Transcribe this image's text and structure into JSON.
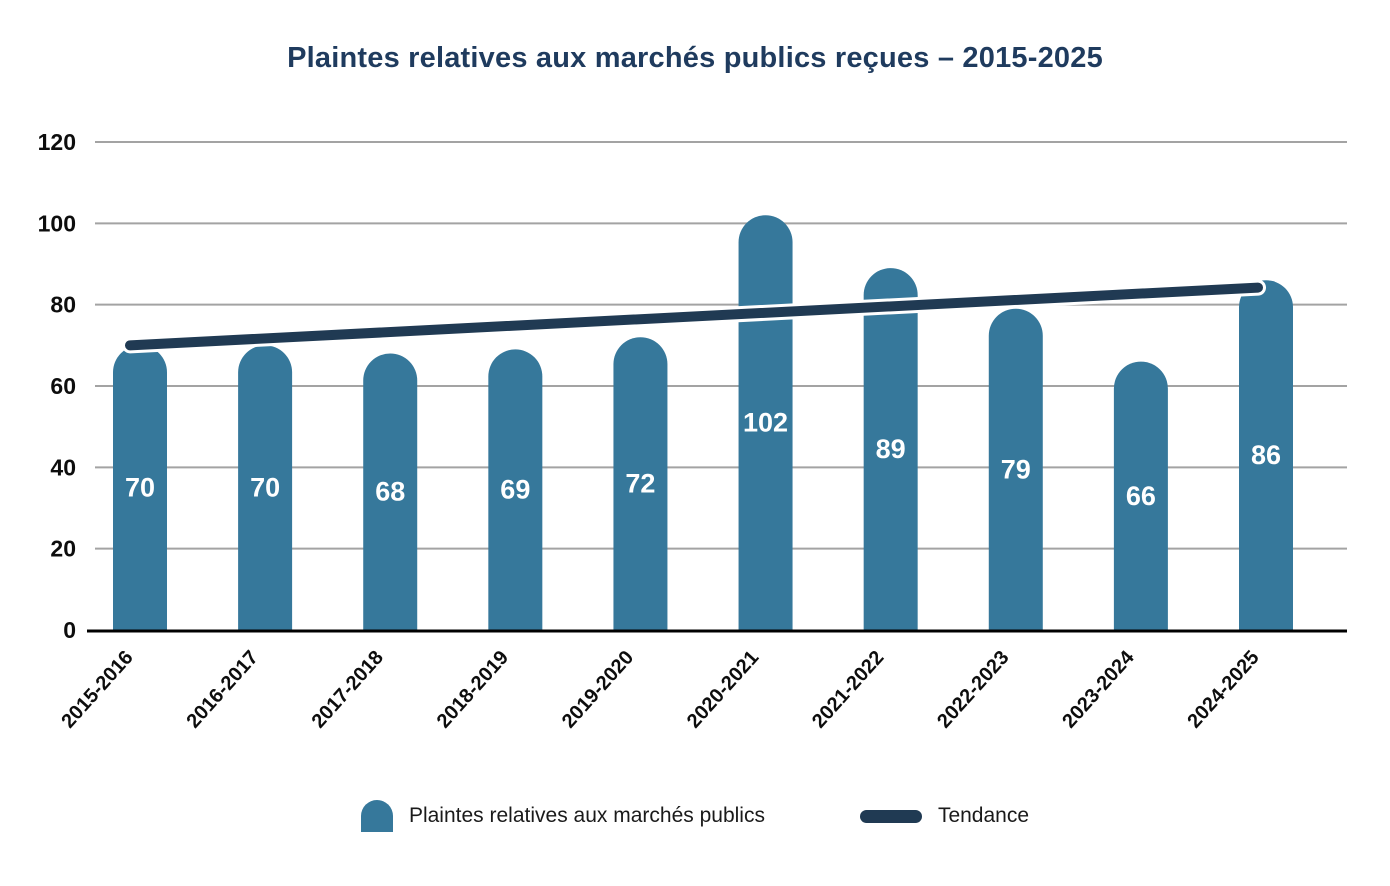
{
  "chart_data": {
    "type": "bar",
    "title": "Plaintes relatives aux marchés publics reçues – 2015-2025",
    "categories": [
      "2015-2016",
      "2016-2017",
      "2017-2018",
      "2018-2019",
      "2019-2020",
      "2020-2021",
      "2021-2022",
      "2022-2023",
      "2023-2024",
      "2024-2025"
    ],
    "series": [
      {
        "name": "Plaintes relatives aux marchés publics",
        "type": "bar",
        "values": [
          70,
          70,
          68,
          69,
          72,
          102,
          89,
          79,
          66,
          86
        ],
        "color": "#36789b",
        "value_label_color": "#ffffff"
      },
      {
        "name": "Tendance",
        "type": "trendline",
        "start_value": 70,
        "end_value": 84.2,
        "color": "#203a53",
        "casing_color": "#ffffff"
      }
    ],
    "ylim": [
      0,
      120
    ],
    "yticks": [
      0,
      20,
      40,
      60,
      80,
      100,
      120
    ],
    "grid": true,
    "grid_color": "#a3a3a3",
    "axis_line_color": "#000000",
    "x_tick_rotation_deg": -48,
    "legend_position": "bottom",
    "xlabel": "",
    "ylabel": ""
  },
  "colors": {
    "title": "#1f3b5e",
    "background": "#ffffff",
    "tick_text": "#0d0d0d"
  }
}
